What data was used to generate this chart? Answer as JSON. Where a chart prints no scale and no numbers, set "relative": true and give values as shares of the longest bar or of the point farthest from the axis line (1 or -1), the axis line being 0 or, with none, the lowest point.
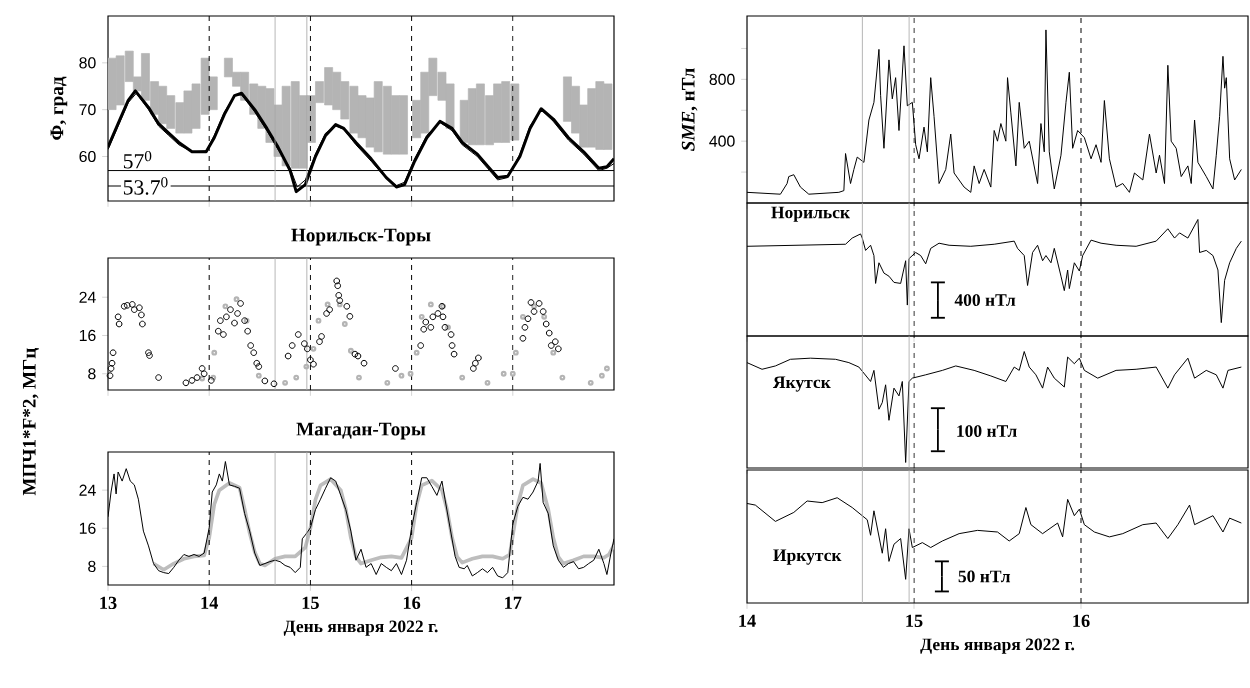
{
  "chart_data": [
    {
      "type": "line",
      "ylabel": "Φ, град",
      "xlim": [
        13,
        18
      ],
      "xticks": [
        13,
        14,
        15,
        16,
        17
      ],
      "ylim": [
        50.5,
        90
      ],
      "yticks": [
        60,
        70,
        80
      ],
      "tick_labels": "y",
      "series": [
        {
          "type": "bar",
          "color": "#b4b4b4",
          "x": [
            13.04,
            13.12,
            13.21,
            13.29,
            13.37,
            13.46,
            13.54,
            13.62,
            13.71,
            13.79,
            13.87,
            13.96,
            14.04,
            14.19,
            14.27,
            14.35,
            14.44,
            14.52,
            14.6,
            14.68,
            14.76,
            14.85,
            14.93,
            15.01,
            15.09,
            15.18,
            15.26,
            15.34,
            15.43,
            15.51,
            15.59,
            15.67,
            15.76,
            15.84,
            15.92,
            16.05,
            16.13,
            16.21,
            16.3,
            16.38,
            16.52,
            16.6,
            16.68,
            16.77,
            16.85,
            16.93,
            17.02,
            17.54,
            17.62,
            17.7,
            17.78,
            17.86,
            17.94
          ],
          "base": [
            70,
            71,
            76,
            74,
            72,
            69,
            67,
            66,
            65,
            65,
            66,
            69,
            70,
            77,
            75,
            72,
            69,
            66,
            63,
            60,
            58,
            57.5,
            57.5,
            63,
            71.5,
            71,
            70,
            68,
            65,
            64,
            62,
            61,
            60.5,
            60.5,
            60.5,
            64,
            65,
            73,
            72,
            66,
            63,
            62.5,
            62.5,
            62.5,
            63,
            63,
            63.5,
            67.5,
            65,
            62,
            62,
            61.5,
            61.5
          ],
          "values": [
            11,
            10.5,
            6.5,
            3,
            10,
            7,
            8,
            7,
            6.5,
            9,
            9.5,
            12,
            7,
            4,
            3,
            6,
            6.5,
            9,
            11.5,
            11,
            17,
            18.5,
            15.5,
            10,
            4.5,
            8,
            8,
            8,
            10,
            9,
            10.5,
            15,
            14.5,
            12.5,
            12.5,
            8,
            13,
            8,
            6,
            9.5,
            9,
            12,
            13,
            10.5,
            12.5,
            13,
            12,
            9.5,
            10,
            9,
            12.5,
            14.5,
            14
          ]
        },
        {
          "color": "#000000",
          "x": [
            13.0,
            13.1,
            13.2,
            13.27,
            13.4,
            13.5,
            13.6,
            13.7,
            13.83,
            13.97,
            14.05,
            14.15,
            14.25,
            14.32,
            14.45,
            14.57,
            14.68,
            14.8,
            14.86,
            14.95,
            15.05,
            15.15,
            15.25,
            15.33,
            15.45,
            15.6,
            15.75,
            15.85,
            15.93,
            16.03,
            16.15,
            16.28,
            16.4,
            16.5,
            16.65,
            16.75,
            16.85,
            16.95,
            17.07,
            17.17,
            17.28,
            17.4,
            17.55,
            17.7,
            17.85,
            17.93,
            18.0
          ],
          "values": [
            62,
            67,
            72,
            74,
            70.5,
            67,
            65,
            63,
            61,
            61,
            64,
            69,
            73,
            73.5,
            70,
            66,
            62,
            57,
            52.5,
            54,
            60,
            64.5,
            66.8,
            66,
            63,
            59.5,
            55.5,
            53.5,
            54,
            59,
            64,
            67.5,
            66,
            63,
            60.5,
            58,
            55.5,
            55.8,
            60,
            66,
            70.2,
            68,
            64,
            61,
            57.5,
            57.8,
            59.5
          ]
        },
        {
          "color": "#000000",
          "x": [
            13.0,
            13.1,
            13.2,
            13.28,
            13.4,
            13.5,
            13.6,
            13.7,
            13.83,
            13.97,
            14.05,
            14.15,
            14.25,
            14.32,
            14.45,
            14.57,
            14.68,
            14.8,
            14.87,
            14.95,
            15.05,
            15.15,
            15.25,
            15.33,
            15.45,
            15.6,
            15.75,
            15.85,
            15.93,
            16.03,
            16.15,
            16.28,
            16.4,
            16.5,
            16.65,
            16.75,
            16.85,
            16.95,
            17.07,
            17.17,
            17.28,
            17.4,
            17.55,
            17.7,
            17.85,
            17.93,
            18.0
          ],
          "values": [
            61.5,
            66.5,
            71.5,
            73.5,
            70,
            66.5,
            64.5,
            62.5,
            61,
            61.2,
            64.5,
            69.5,
            73,
            73.2,
            69.5,
            65.5,
            61.5,
            57.5,
            53.5,
            55,
            60.5,
            65,
            66.5,
            65.8,
            62.5,
            59,
            55.3,
            53.8,
            54.5,
            59.5,
            64.5,
            67.3,
            65.5,
            62.5,
            60,
            57.5,
            55,
            55.5,
            60.5,
            66.5,
            70,
            67.5,
            63.5,
            60.5,
            57,
            57.5,
            58.5
          ]
        }
      ],
      "ref_lines": [
        {
          "axis": "y",
          "value": 57,
          "label": "57$^{0}$",
          "color": "#000000"
        },
        {
          "axis": "y",
          "value": 53.7,
          "label": "53.7$^{0}$",
          "color": "#000000"
        },
        {
          "axis": "x",
          "value": 14,
          "color": "#000000",
          "line_style": "dashed"
        },
        {
          "axis": "x",
          "value": 15,
          "color": "#000000",
          "line_style": "dashed"
        },
        {
          "axis": "x",
          "value": 16,
          "color": "#000000",
          "line_style": "dashed"
        },
        {
          "axis": "x",
          "value": 17,
          "color": "#000000",
          "line_style": "dashed"
        },
        {
          "axis": "x",
          "value": 14.65,
          "color": "#a8a8a8"
        },
        {
          "axis": "x",
          "value": 14.965,
          "color": "#a8a8a8"
        }
      ]
    },
    {
      "type": "scatter",
      "title": "Норильск-Торы",
      "ylabel": "МПЧ1*F*2, МГц",
      "xlim": [
        13,
        18
      ],
      "xticks": [
        13,
        14,
        15,
        16,
        17
      ],
      "ylim": [
        4.6,
        32.2
      ],
      "yticks": [
        8,
        16,
        24
      ],
      "tick_labels": "y",
      "marker": "circle",
      "series": [
        {
          "color": "#b4b4b4",
          "x": [
            13.93,
            14.04,
            14.05,
            14.16,
            14.27,
            14.37,
            14.49,
            14.75,
            14.86,
            14.96,
            15.03,
            15.08,
            15.17,
            15.29,
            15.34,
            15.4,
            15.48,
            15.76,
            15.9,
            15.99,
            16.05,
            16.1,
            16.19,
            16.31,
            16.36,
            16.5,
            16.75,
            16.91,
            17.0,
            17.03,
            17.1,
            17.21,
            17.31,
            17.4,
            17.49,
            17.77,
            17.88,
            17.93
          ],
          "values": [
            7.0,
            7.2,
            12.4,
            22.1,
            23.6,
            19.1,
            7.6,
            6.1,
            7.2,
            9.5,
            13.2,
            19.1,
            22.5,
            22.5,
            18.4,
            12.8,
            7.2,
            6.1,
            7.6,
            8.0,
            12.4,
            19.9,
            22.5,
            22.1,
            17.7,
            7.2,
            6.1,
            8.0,
            8.0,
            12.4,
            19.9,
            22.1,
            19.9,
            12.4,
            7.2,
            6.1,
            7.6,
            9.1
          ]
        },
        {
          "color": "#000000",
          "x": [
            13.02,
            13.03,
            13.04,
            13.05,
            13.1,
            13.11,
            13.16,
            13.19,
            13.24,
            13.26,
            13.31,
            13.33,
            13.34,
            13.4,
            13.41,
            13.5,
            13.77,
            13.83,
            13.88,
            13.93,
            13.95,
            14.02,
            14.09,
            14.11,
            14.14,
            14.17,
            14.21,
            14.25,
            14.28,
            14.31,
            14.35,
            14.38,
            14.41,
            14.44,
            14.47,
            14.49,
            14.55,
            14.64,
            14.78,
            14.82,
            14.88,
            14.94,
            14.97,
            15.0,
            15.03,
            15.09,
            15.11,
            15.16,
            15.19,
            15.26,
            15.27,
            15.28,
            15.29,
            15.36,
            15.39,
            15.44,
            15.47,
            15.53,
            15.84,
            16.09,
            16.12,
            16.14,
            16.19,
            16.21,
            16.26,
            16.3,
            16.31,
            16.33,
            16.39,
            16.4,
            16.42,
            16.61,
            16.63,
            16.66,
            17.1,
            17.12,
            17.15,
            17.18,
            17.21,
            17.26,
            17.3,
            17.33,
            17.36,
            17.38,
            17.42,
            17.45
          ],
          "values": [
            7.6,
            9.1,
            10.2,
            12.4,
            19.9,
            18.4,
            22.1,
            22.3,
            22.5,
            21.4,
            21.8,
            20.3,
            18.4,
            12.4,
            11.8,
            7.2,
            6.1,
            6.6,
            7.2,
            9.1,
            8.0,
            6.6,
            16.9,
            19.1,
            16.2,
            19.9,
            21.4,
            18.6,
            20.6,
            22.7,
            19.1,
            16.9,
            13.9,
            12.4,
            10.2,
            9.5,
            6.5,
            5.9,
            11.7,
            13.9,
            16.2,
            14.3,
            13.2,
            10.9,
            10.0,
            14.7,
            15.8,
            20.6,
            21.4,
            27.4,
            26.4,
            24.4,
            23.3,
            22.1,
            20.0,
            12.1,
            11.7,
            10.2,
            9.1,
            13.9,
            17.3,
            18.8,
            17.7,
            19.9,
            20.6,
            22.1,
            19.9,
            17.7,
            16.2,
            13.9,
            12.1,
            9.1,
            10.2,
            11.3,
            15.4,
            17.7,
            19.5,
            22.9,
            21.0,
            22.7,
            21.0,
            18.4,
            16.5,
            13.9,
            14.7,
            13.2
          ]
        }
      ],
      "ref_lines": [
        {
          "axis": "x",
          "value": 14,
          "color": "#000000",
          "line_style": "dashed"
        },
        {
          "axis": "x",
          "value": 15,
          "color": "#000000",
          "line_style": "dashed"
        },
        {
          "axis": "x",
          "value": 16,
          "color": "#000000",
          "line_style": "dashed"
        },
        {
          "axis": "x",
          "value": 17,
          "color": "#000000",
          "line_style": "dashed"
        },
        {
          "axis": "x",
          "value": 14.65,
          "color": "#a8a8a8"
        },
        {
          "axis": "x",
          "value": 14.965,
          "color": "#a8a8a8"
        }
      ]
    },
    {
      "type": "line",
      "title": "Магадан-Торы",
      "xlabel": "День января 2022 г.",
      "xlim": [
        13,
        18
      ],
      "xticks": [
        13,
        14,
        15,
        16,
        17
      ],
      "ylim": [
        4.1,
        32
      ],
      "yticks": [
        8,
        16,
        24
      ],
      "series": [
        {
          "color": "#bdbdbd",
          "x": [
            13.45,
            13.55,
            13.65,
            13.75,
            13.85,
            13.95,
            14.0,
            14.05,
            14.1,
            14.2,
            14.3,
            14.35,
            14.4,
            14.45,
            14.5,
            14.55,
            14.65,
            14.75,
            14.85,
            14.95,
            15.0,
            15.05,
            15.1,
            15.2,
            15.3,
            15.35,
            15.4,
            15.45,
            15.5,
            15.6,
            15.7,
            15.8,
            15.9,
            16.0,
            16.05,
            16.1,
            16.2,
            16.3,
            16.35,
            16.4,
            16.45,
            16.5,
            16.6,
            16.7,
            16.8,
            16.9,
            16.97,
            17.0,
            17.05,
            17.1,
            17.2,
            17.28,
            17.35,
            17.4,
            17.45,
            17.5,
            17.6,
            17.7,
            17.8,
            17.9,
            17.95,
            18.0
          ],
          "values": [
            8.6,
            7.3,
            8.6,
            9.6,
            10.1,
            10.3,
            14,
            21,
            24,
            25.5,
            24.5,
            20,
            15,
            11,
            8.6,
            8.2,
            9.6,
            10.1,
            10.1,
            12,
            16,
            22,
            25,
            26.3,
            24,
            20,
            14,
            10,
            8.6,
            9.3,
            9.9,
            10.1,
            9.8,
            14,
            21,
            25,
            26,
            24,
            20,
            14,
            10,
            8.8,
            9.6,
            10.1,
            10.1,
            9.6,
            10.5,
            14.5,
            21,
            25,
            26.3,
            25.5,
            20,
            14,
            10,
            8.6,
            9.3,
            10.1,
            10.1,
            9.8,
            10.5,
            12.5
          ]
        },
        {
          "color": "#000000",
          "x": [
            13.0,
            13.03,
            13.06,
            13.08,
            13.1,
            13.14,
            13.18,
            13.22,
            13.26,
            13.3,
            13.35,
            13.4,
            13.45,
            13.5,
            13.55,
            13.6,
            13.65,
            13.7,
            13.75,
            13.8,
            13.85,
            13.9,
            13.95,
            14.0,
            14.03,
            14.07,
            14.1,
            14.13,
            14.16,
            14.2,
            14.25,
            14.3,
            14.35,
            14.4,
            14.45,
            14.5,
            14.55,
            14.6,
            14.65,
            14.7,
            14.75,
            14.8,
            14.85,
            14.9,
            14.92,
            14.95,
            15.0,
            15.05,
            15.1,
            15.15,
            15.2,
            15.25,
            15.3,
            15.35,
            15.4,
            15.45,
            15.5,
            15.55,
            15.6,
            15.65,
            15.7,
            15.75,
            15.8,
            15.85,
            15.9,
            15.95,
            16.0,
            16.05,
            16.1,
            16.15,
            16.2,
            16.25,
            16.3,
            16.33,
            16.38,
            16.43,
            16.47,
            16.52,
            16.55,
            16.6,
            16.65,
            16.7,
            16.75,
            16.8,
            16.85,
            16.9,
            16.95,
            17.0,
            17.05,
            17.1,
            17.15,
            17.2,
            17.25,
            17.27,
            17.3,
            17.35,
            17.4,
            17.45,
            17.5,
            17.55,
            17.6,
            17.65,
            17.7,
            17.75,
            17.8,
            17.85,
            17.9,
            17.93,
            17.97,
            18.0
          ],
          "values": [
            18.4,
            23.6,
            27.4,
            23.2,
            27.8,
            25.9,
            28.5,
            25.9,
            25.1,
            22.1,
            15.4,
            12.3,
            8.6,
            7.1,
            6.7,
            6.5,
            7.8,
            9.3,
            10.5,
            10.1,
            10.5,
            10.1,
            10.8,
            16.1,
            23.6,
            25.1,
            27.4,
            25.9,
            30.0,
            25.1,
            24.8,
            24.4,
            19.1,
            15.4,
            10.8,
            8.2,
            8.6,
            9.0,
            9.3,
            9.0,
            8.2,
            7.8,
            6.7,
            7.8,
            13.8,
            14.6,
            16.1,
            19.9,
            22.1,
            24.4,
            26.6,
            25.9,
            22.9,
            19.9,
            15.4,
            9.3,
            11.6,
            7.8,
            8.6,
            6.3,
            8.6,
            7.8,
            7.1,
            8.6,
            6.3,
            9.3,
            16.1,
            21.4,
            26.6,
            26.6,
            24.8,
            22.9,
            25.9,
            22.1,
            16.1,
            10.1,
            7.8,
            7.5,
            8.2,
            6.0,
            6.7,
            7.5,
            6.7,
            7.8,
            6.0,
            5.6,
            6.7,
            16.9,
            20.6,
            22.5,
            22.1,
            23.6,
            25.9,
            29.6,
            21.4,
            19.1,
            12.3,
            9.3,
            7.8,
            8.6,
            9.0,
            7.5,
            7.8,
            8.6,
            9.3,
            11.6,
            8.6,
            6.3,
            10.8,
            13.8
          ]
        }
      ],
      "ref_lines": [
        {
          "axis": "x",
          "value": 14,
          "color": "#000000",
          "line_style": "dashed"
        },
        {
          "axis": "x",
          "value": 15,
          "color": "#000000",
          "line_style": "dashed"
        },
        {
          "axis": "x",
          "value": 16,
          "color": "#000000",
          "line_style": "dashed"
        },
        {
          "axis": "x",
          "value": 17,
          "color": "#000000",
          "line_style": "dashed"
        },
        {
          "axis": "x",
          "value": 14.65,
          "color": "#a8a8a8"
        },
        {
          "axis": "x",
          "value": 14.965,
          "color": "#a8a8a8"
        }
      ]
    },
    {
      "type": "line",
      "ylabel": "*SME*, нТл",
      "xlim": [
        14,
        17
      ],
      "xticks": [
        14,
        15,
        16
      ],
      "ylim": [
        0,
        1210
      ],
      "yticks": [
        {
          "value": 200,
          "label": null
        },
        400,
        {
          "value": 600,
          "label": null
        },
        800,
        {
          "value": 1000,
          "label": null
        }
      ],
      "tick_labels": "y",
      "series": [
        {
          "color": "#000000",
          "x": [
            14.0,
            14.2,
            14.24,
            14.25,
            14.28,
            14.32,
            14.37,
            14.55,
            14.58,
            14.59,
            14.62,
            14.64,
            14.66,
            14.7,
            14.73,
            14.76,
            14.79,
            14.8,
            14.82,
            14.85,
            14.87,
            14.89,
            14.91,
            14.94,
            14.96,
            14.99,
            15.01,
            15.03,
            15.06,
            15.08,
            15.1,
            15.12,
            15.15,
            15.19,
            15.22,
            15.24,
            15.3,
            15.34,
            15.36,
            15.39,
            15.42,
            15.46,
            15.48,
            15.5,
            15.52,
            15.55,
            15.56,
            15.58,
            15.61,
            15.63,
            15.66,
            15.69,
            15.74,
            15.76,
            15.78,
            15.79,
            15.81,
            15.84,
            15.88,
            15.91,
            15.93,
            15.95,
            15.98,
            16.02,
            16.06,
            16.09,
            16.12,
            16.14,
            16.17,
            16.21,
            16.25,
            16.29,
            16.32,
            16.37,
            16.41,
            16.45,
            16.47,
            16.5,
            16.52,
            16.54,
            16.57,
            16.6,
            16.64,
            16.66,
            16.68,
            16.7,
            16.75,
            16.79,
            16.81,
            16.83,
            16.85,
            16.86,
            16.87,
            16.89,
            16.92,
            16.96
          ],
          "values": [
            69,
            57,
            126,
            171,
            183,
            103,
            57,
            69,
            80,
            320,
            126,
            217,
            297,
            263,
            537,
            651,
            994,
            697,
            354,
            926,
            674,
            811,
            469,
            1017,
            629,
            651,
            377,
            286,
            491,
            331,
            811,
            560,
            126,
            217,
            446,
            194,
            103,
            69,
            240,
            126,
            217,
            103,
            469,
            400,
            514,
            400,
            811,
            583,
            240,
            651,
            354,
            400,
            126,
            514,
            331,
            1120,
            331,
            91,
            309,
            651,
            846,
            354,
            469,
            423,
            286,
            377,
            263,
            663,
            286,
            103,
            126,
            69,
            194,
            149,
            446,
            194,
            309,
            126,
            891,
            400,
            354,
            171,
            240,
            126,
            537,
            263,
            171,
            91,
            309,
            560,
            949,
            743,
            811,
            286,
            149,
            217
          ]
        }
      ],
      "ref_lines": [
        {
          "axis": "x",
          "value": 15,
          "color": "#000000",
          "line_style": "dashed"
        },
        {
          "axis": "x",
          "value": 16,
          "color": "#000000",
          "line_style": "dashed"
        },
        {
          "axis": "x",
          "value": 14.69,
          "color": "#a8a8a8"
        },
        {
          "axis": "x",
          "value": 14.97,
          "color": "#a8a8a8"
        }
      ]
    },
    {
      "type": "line",
      "title": "Норильск",
      "relative": true,
      "xlim": [
        14,
        17
      ],
      "xticks": [
        14,
        15,
        16
      ],
      "tick_labels": false,
      "annotations": [
        "400 нТл"
      ],
      "series": [
        {
          "color": "#000000",
          "x": [
            14.0,
            14.59,
            14.63,
            14.68,
            14.69,
            14.71,
            14.74,
            14.76,
            14.77,
            14.79,
            14.82,
            14.85,
            14.88,
            14.92,
            14.95,
            14.96,
            14.97,
            15.01,
            15.04,
            15.07,
            15.1,
            15.15,
            15.21,
            15.34,
            15.48,
            15.6,
            15.62,
            15.66,
            15.68,
            15.71,
            15.74,
            15.77,
            15.79,
            15.82,
            15.84,
            15.88,
            15.9,
            15.92,
            15.93,
            15.96,
            15.99,
            16.01,
            16.06,
            16.12,
            16.21,
            16.33,
            16.45,
            16.52,
            16.56,
            16.59,
            16.64,
            16.7,
            16.71,
            16.75,
            16.79,
            16.82,
            16.84,
            16.86,
            16.89,
            16.93,
            16.96
          ],
          "values": [
            0.74,
            0.76,
            0.82,
            0.86,
            0.82,
            0.7,
            0.75,
            0.65,
            0.38,
            0.58,
            0.48,
            0.45,
            0.39,
            0.38,
            0.6,
            0.17,
            0.62,
            0.68,
            0.65,
            0.57,
            0.72,
            0.77,
            0.75,
            0.74,
            0.76,
            0.79,
            0.72,
            0.65,
            0.36,
            0.68,
            0.75,
            0.6,
            0.65,
            0.58,
            0.72,
            0.45,
            0.31,
            0.51,
            0.33,
            0.58,
            0.5,
            0.65,
            0.8,
            0.77,
            0.75,
            0.74,
            0.79,
            0.91,
            0.82,
            0.87,
            0.82,
            1.0,
            0.68,
            0.7,
            0.65,
            0.51,
            0.0,
            0.41,
            0.58,
            0.72,
            0.79
          ]
        }
      ],
      "ref_lines": [
        {
          "axis": "x",
          "value": 15,
          "color": "#000000",
          "line_style": "dashed"
        },
        {
          "axis": "x",
          "value": 16,
          "color": "#000000",
          "line_style": "dashed"
        },
        {
          "axis": "x",
          "value": 14.69,
          "color": "#a8a8a8"
        },
        {
          "axis": "x",
          "value": 14.97,
          "color": "#a8a8a8"
        }
      ]
    },
    {
      "type": "line",
      "title": "Якутск",
      "relative": true,
      "xlim": [
        14,
        17
      ],
      "xticks": [
        14,
        15,
        16
      ],
      "tick_labels": false,
      "annotations": [
        "100 нТл"
      ],
      "series": [
        {
          "color": "#000000",
          "x": [
            14.0,
            14.09,
            14.17,
            14.26,
            14.38,
            14.53,
            14.61,
            14.67,
            14.74,
            14.76,
            14.79,
            14.81,
            14.83,
            14.85,
            14.88,
            14.91,
            14.93,
            14.95,
            14.97,
            14.99,
            15.07,
            15.17,
            15.25,
            15.36,
            15.46,
            15.55,
            15.6,
            15.63,
            15.66,
            15.69,
            15.73,
            15.77,
            15.8,
            15.84,
            15.9,
            15.92,
            15.96,
            15.99,
            16.02,
            16.1,
            16.21,
            16.33,
            16.45,
            16.52,
            16.56,
            16.64,
            16.68,
            16.75,
            16.81,
            16.85,
            16.88,
            16.96
          ],
          "values": [
            0.9,
            0.84,
            0.87,
            0.93,
            0.94,
            0.93,
            0.9,
            0.86,
            0.73,
            0.83,
            0.48,
            0.54,
            0.7,
            0.38,
            0.67,
            0.6,
            0.73,
            0.0,
            0.73,
            0.76,
            0.79,
            0.83,
            0.87,
            0.83,
            0.78,
            0.73,
            0.86,
            0.83,
            1.0,
            0.86,
            0.79,
            0.67,
            0.86,
            0.76,
            0.68,
            0.95,
            0.89,
            0.94,
            0.83,
            0.76,
            0.83,
            0.84,
            0.86,
            0.67,
            0.79,
            0.94,
            0.76,
            0.83,
            0.79,
            0.67,
            0.83,
            0.86
          ]
        }
      ],
      "ref_lines": [
        {
          "axis": "x",
          "value": 15,
          "color": "#000000",
          "line_style": "dashed"
        },
        {
          "axis": "x",
          "value": 16,
          "color": "#000000",
          "line_style": "dashed"
        },
        {
          "axis": "x",
          "value": 14.69,
          "color": "#a8a8a8"
        },
        {
          "axis": "x",
          "value": 14.97,
          "color": "#a8a8a8"
        }
      ]
    },
    {
      "type": "line",
      "title": "Иркутск",
      "xlabel": "День января 2022 г.",
      "relative": true,
      "xlim": [
        14,
        17
      ],
      "xticks": [
        14,
        15,
        16
      ],
      "tick_labels": "x",
      "annotations": [
        "50 нТл"
      ],
      "series": [
        {
          "color": "#000000",
          "x": [
            14.0,
            14.05,
            14.17,
            14.28,
            14.36,
            14.45,
            14.54,
            14.63,
            14.72,
            14.74,
            14.76,
            14.81,
            14.83,
            14.85,
            14.88,
            14.92,
            14.95,
            14.97,
            14.99,
            15.05,
            15.1,
            15.17,
            15.27,
            15.38,
            15.5,
            15.57,
            15.63,
            15.67,
            15.7,
            15.77,
            15.86,
            15.89,
            15.92,
            15.96,
            15.99,
            16.02,
            16.08,
            16.17,
            16.25,
            16.37,
            16.45,
            16.52,
            16.58,
            16.65,
            16.68,
            16.79,
            16.85,
            16.89,
            16.96
          ],
          "values": [
            0.93,
            0.91,
            0.71,
            0.82,
            0.96,
            0.94,
            1.0,
            0.88,
            0.73,
            0.54,
            0.84,
            0.32,
            0.62,
            0.22,
            0.43,
            0.5,
            0.0,
            0.62,
            0.39,
            0.45,
            0.39,
            0.47,
            0.56,
            0.6,
            0.58,
            0.47,
            0.56,
            0.88,
            0.67,
            0.56,
            0.69,
            0.52,
            0.98,
            0.78,
            0.86,
            0.67,
            0.58,
            0.52,
            0.56,
            0.67,
            0.69,
            0.5,
            0.67,
            0.91,
            0.67,
            0.78,
            0.58,
            0.75,
            0.69
          ]
        }
      ],
      "ref_lines": [
        {
          "axis": "x",
          "value": 15,
          "color": "#000000",
          "line_style": "dashed"
        },
        {
          "axis": "x",
          "value": 16,
          "color": "#000000",
          "line_style": "dashed"
        },
        {
          "axis": "x",
          "value": 14.69,
          "color": "#a8a8a8"
        },
        {
          "axis": "x",
          "value": 14.97,
          "color": "#a8a8a8"
        }
      ]
    }
  ]
}
